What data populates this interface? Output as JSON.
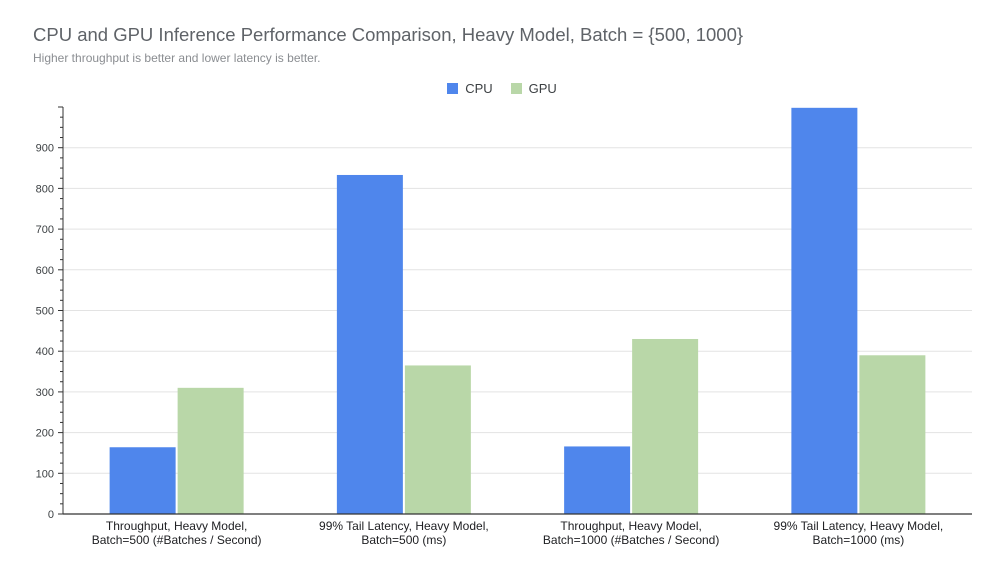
{
  "colors": {
    "cpu": "#4f86ec",
    "gpu": "#b9d7a8",
    "grid": "#e3e3e3",
    "axis": "#333333"
  },
  "chart_data": {
    "type": "bar",
    "title": "CPU and GPU Inference Performance Comparison, Heavy Model, Batch = {500, 1000}",
    "subtitle": "Higher throughput is better and lower latency is better.",
    "categories": [
      [
        "Throughput, Heavy Model,",
        "Batch=500 (#Batches / Second)"
      ],
      [
        "99% Tail Latency, Heavy Model,",
        "Batch=500 (ms)"
      ],
      [
        "Throughput, Heavy Model,",
        "Batch=1000 (#Batches / Second)"
      ],
      [
        "99% Tail Latency, Heavy Model,",
        "Batch=1000 (ms)"
      ]
    ],
    "series": [
      {
        "name": "CPU",
        "values": [
          164,
          833,
          166,
          998
        ]
      },
      {
        "name": "GPU",
        "values": [
          310,
          365,
          430,
          390
        ]
      }
    ],
    "yticks": [
      0,
      100,
      200,
      300,
      400,
      500,
      600,
      700,
      800,
      900
    ],
    "ylim": [
      0,
      1000
    ],
    "grid": true,
    "legend": "top-center"
  }
}
